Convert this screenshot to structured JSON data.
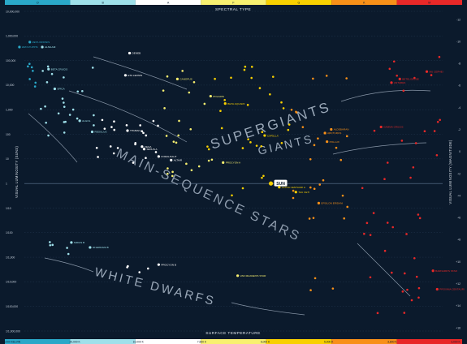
{
  "chart_data": {
    "type": "scatter",
    "top_axis_title": "SPECTRAL TYPE",
    "bottom_axis_title": "SURFACE TEMPERATURE",
    "left_axis_title": "VISUAL LUMINOSITY (SUNS)",
    "right_axis_title": "VISUAL LUMINOSITY (MAGNITUDE)",
    "spectral_classes": [
      {
        "label": "O",
        "color": "#2aa8c8"
      },
      {
        "label": "B",
        "color": "#9fe0ea"
      },
      {
        "label": "A",
        "color": "#ffffff"
      },
      {
        "label": "F",
        "color": "#f8f070"
      },
      {
        "label": "G",
        "color": "#f8d000"
      },
      {
        "label": "K",
        "color": "#f89018"
      },
      {
        "label": "M",
        "color": "#e82828"
      }
    ],
    "temperature_ticks": [
      "30,000 KELVIN",
      "20,000 K",
      "10,000 K",
      "7,500 K",
      "6,000 K",
      "5,000 K",
      "3,800 K",
      "3,000 K"
    ],
    "luminosity_ticks": [
      "10,000,000",
      "1,000,000",
      "100,000",
      "10,000",
      "1,000",
      "100",
      "10",
      "1",
      "1/10",
      "1/100",
      "1/1,000",
      "1/10,000",
      "1/100,000",
      "1/1,000,000"
    ],
    "magnitude_ticks": [
      "-12",
      "-10",
      "-8",
      "-6",
      "-4",
      "-2",
      "0",
      "+2",
      "+4",
      "+6",
      "+8",
      "+10",
      "+12",
      "+14",
      "+16"
    ],
    "regions": [
      {
        "name": "SUPERGIANTS",
        "color": "#9aa8b8"
      },
      {
        "name": "GIANTS",
        "color": "#9aa8b8"
      },
      {
        "name": "MAIN-SEQUENCE STARS",
        "color": "#8e9cad"
      },
      {
        "name": "WHITE DWARFS",
        "color": "#9aa8b8"
      }
    ],
    "labeled_stars": [
      {
        "name": "SUN",
        "class": "G",
        "x": 6.4,
        "y": 0.0,
        "highlight": true
      },
      {
        "name": "ZETA PUPPIS",
        "class": "O",
        "x": 0.35,
        "y": 5.55
      },
      {
        "name": "ZETA ORIONIS",
        "class": "O",
        "x": 0.6,
        "y": 5.75
      },
      {
        "name": "ALNILAM",
        "class": "B",
        "x": 0.9,
        "y": 5.55
      },
      {
        "name": "BETA CRUCIS",
        "class": "B",
        "x": 1.05,
        "y": 4.65
      },
      {
        "name": "SPICA",
        "class": "B",
        "x": 1.2,
        "y": 3.85
      },
      {
        "name": "ALGOL",
        "class": "B",
        "x": 1.8,
        "y": 2.55
      },
      {
        "name": "REGULUS",
        "class": "B",
        "x": 2.1,
        "y": 2.1
      },
      {
        "name": "DENEB",
        "class": "A",
        "x": 3.0,
        "y": 5.3
      },
      {
        "name": "ETA LEONIS",
        "class": "A",
        "x": 2.9,
        "y": 4.4
      },
      {
        "name": "THUBAN",
        "class": "A",
        "x": 2.95,
        "y": 2.15
      },
      {
        "name": "VEGA",
        "class": "A",
        "x": 3.3,
        "y": 1.5
      },
      {
        "name": "SIRIUS A",
        "class": "A",
        "x": 3.35,
        "y": 1.4
      },
      {
        "name": "FOMALHAUT",
        "class": "A",
        "x": 3.7,
        "y": 1.1
      },
      {
        "name": "ALTAIR",
        "class": "A",
        "x": 4.0,
        "y": 0.95
      },
      {
        "name": "CANOPUS",
        "class": "F",
        "x": 4.15,
        "y": 4.25
      },
      {
        "name": "BETA AQUARII",
        "class": "G",
        "x": 5.3,
        "y": 3.25
      },
      {
        "name": "POLARIS",
        "class": "F",
        "x": 4.95,
        "y": 3.55
      },
      {
        "name": "PROCYON A",
        "class": "F",
        "x": 5.25,
        "y": 0.85
      },
      {
        "name": "CAPELLA",
        "class": "G",
        "x": 6.25,
        "y": 1.95
      },
      {
        "name": "ALPHA CENTAURI A",
        "class": "G",
        "x": 6.6,
        "y": -0.15
      },
      {
        "name": "TAU CETI",
        "class": "G",
        "x": 7.0,
        "y": -0.35
      },
      {
        "name": "EPSILON ERIDANI",
        "class": "K",
        "x": 7.55,
        "y": -0.8
      },
      {
        "name": "ALDEBARAN",
        "class": "K",
        "x": 7.85,
        "y": 2.2
      },
      {
        "name": "ARCTURUS",
        "class": "K",
        "x": 7.7,
        "y": 2.05
      },
      {
        "name": "POLLUX",
        "class": "K",
        "x": 7.75,
        "y": 1.7
      },
      {
        "name": "GAMMA CRUCIS",
        "class": "M",
        "x": 9.05,
        "y": 2.3
      },
      {
        "name": "ANTARES",
        "class": "M",
        "x": 9.3,
        "y": 4.1
      },
      {
        "name": "BETELGEUSE",
        "class": "M",
        "x": 9.5,
        "y": 4.25
      },
      {
        "name": "MU CEPHEI",
        "class": "M",
        "x": 10.15,
        "y": 4.55
      },
      {
        "name": "PROXIMA CENTAURI",
        "class": "M",
        "x": 10.4,
        "y": -4.3
      },
      {
        "name": "BARNARD'S STAR",
        "class": "M",
        "x": 10.3,
        "y": -3.55
      },
      {
        "name": "SIRIUS B",
        "class": "B",
        "x": 1.6,
        "y": -2.4
      },
      {
        "name": "PROCYON B",
        "class": "A",
        "x": 3.7,
        "y": -3.3
      },
      {
        "name": "VAN MAANEN'S STAR",
        "class": "F",
        "x": 5.6,
        "y": -3.75
      },
      {
        "name": "40 ERIDANI B",
        "class": "B",
        "x": 2.05,
        "y": -2.6
      }
    ]
  }
}
